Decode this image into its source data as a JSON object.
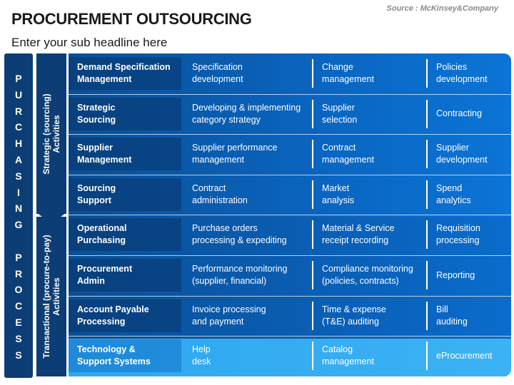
{
  "header": {
    "title": "PROCUREMENT OUTSOURCING",
    "source": "Source : McKinsey&Company",
    "subtitle": "Enter your sub headline here"
  },
  "side": {
    "letters": [
      "P",
      "U",
      "R",
      "C",
      "H",
      "A",
      "S",
      "I",
      "N",
      "G",
      "",
      "P",
      "R",
      "O",
      "C",
      "E",
      "S",
      "S"
    ],
    "strategic_label_line1": "Strategic (sourcing)",
    "strategic_label_line2": "Activities",
    "transactional_label_line1": "Transactional (procure-to-pay)",
    "transactional_label_line2": "Activities"
  },
  "rows": [
    {
      "c0": [
        "Demand Specification",
        "Management"
      ],
      "c1": [
        "Specification",
        "development"
      ],
      "c2": [
        "Change",
        "management"
      ],
      "c3": [
        "Policies",
        "development"
      ]
    },
    {
      "c0": [
        "Strategic",
        "Sourcing"
      ],
      "c1": [
        "Developing & implementing",
        "category strategy"
      ],
      "c2": [
        "Supplier",
        "selection"
      ],
      "c3": [
        "Contracting",
        ""
      ]
    },
    {
      "c0": [
        "Supplier",
        "Management"
      ],
      "c1": [
        "Supplier performance",
        "management"
      ],
      "c2": [
        "Contract",
        "management"
      ],
      "c3": [
        "Supplier",
        "development"
      ]
    },
    {
      "c0": [
        "Sourcing",
        "Support"
      ],
      "c1": [
        "Contract",
        "administration"
      ],
      "c2": [
        "Market",
        "analysis"
      ],
      "c3": [
        "Spend",
        "analytics"
      ]
    },
    {
      "c0": [
        "Operational",
        "Purchasing"
      ],
      "c1": [
        "Purchase orders",
        "processing & expediting"
      ],
      "c2": [
        "Material & Service",
        "receipt recording"
      ],
      "c3": [
        "Requisition",
        "processing"
      ]
    },
    {
      "c0": [
        "Procurement",
        "Admin"
      ],
      "c1": [
        "Performance monitoring",
        "(supplier, financial)"
      ],
      "c2": [
        "Compliance monitoring",
        "(policies, contracts)"
      ],
      "c3": [
        "Reporting",
        ""
      ]
    },
    {
      "c0": [
        "Account Payable",
        "Processing"
      ],
      "c1": [
        "Invoice processing",
        "and payment"
      ],
      "c2": [
        "Time & expense",
        "(T&E) auditing"
      ],
      "c3": [
        "Bill",
        "auditing"
      ]
    },
    {
      "c0": [
        "Technology &",
        "Support Systems"
      ],
      "c1": [
        "Help",
        "desk"
      ],
      "c2": [
        "Catalog",
        "management"
      ],
      "c3": [
        "eProcurement",
        ""
      ]
    }
  ]
}
